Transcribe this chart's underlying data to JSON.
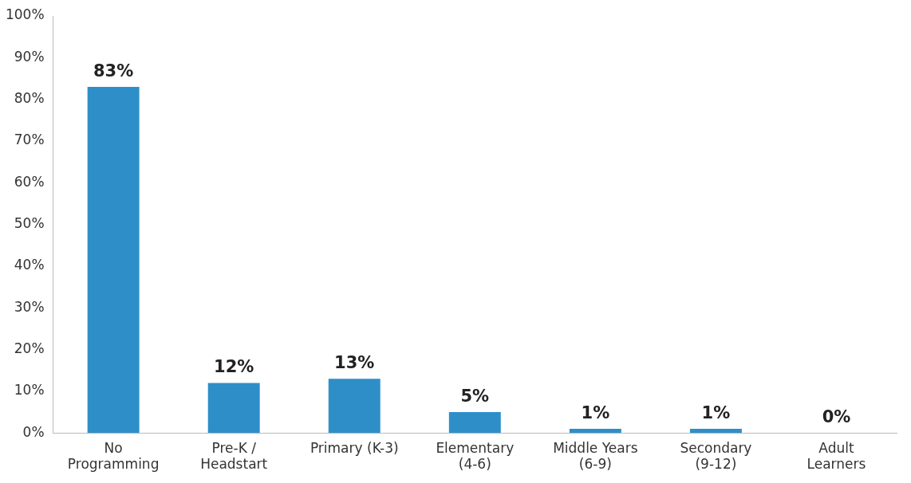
{
  "chart_data": {
    "type": "bar",
    "categories": [
      "No Programming",
      "Pre-K / Headstart",
      "Primary (K-3)",
      "Elementary (4-6)",
      "Middle Years (6-9)",
      "Secondary (9-12)",
      "Adult Learners"
    ],
    "values": [
      83,
      12,
      13,
      5,
      1,
      1,
      0
    ],
    "value_labels": [
      "83%",
      "12%",
      "13%",
      "5%",
      "1%",
      "1%",
      "0%"
    ],
    "color": "#2e8fc8",
    "ylim": [
      0,
      100
    ],
    "yticks": [
      {
        "value": 0,
        "label": "0%"
      },
      {
        "value": 10,
        "label": "10%"
      },
      {
        "value": 20,
        "label": "20%"
      },
      {
        "value": 30,
        "label": "30%"
      },
      {
        "value": 40,
        "label": "40%"
      },
      {
        "value": 50,
        "label": "50%"
      },
      {
        "value": 60,
        "label": "60%"
      },
      {
        "value": 70,
        "label": "70%"
      },
      {
        "value": 80,
        "label": "80%"
      },
      {
        "value": 90,
        "label": "90%"
      },
      {
        "value": 100,
        "label": "100%"
      }
    ],
    "grid": false,
    "legend": false
  }
}
